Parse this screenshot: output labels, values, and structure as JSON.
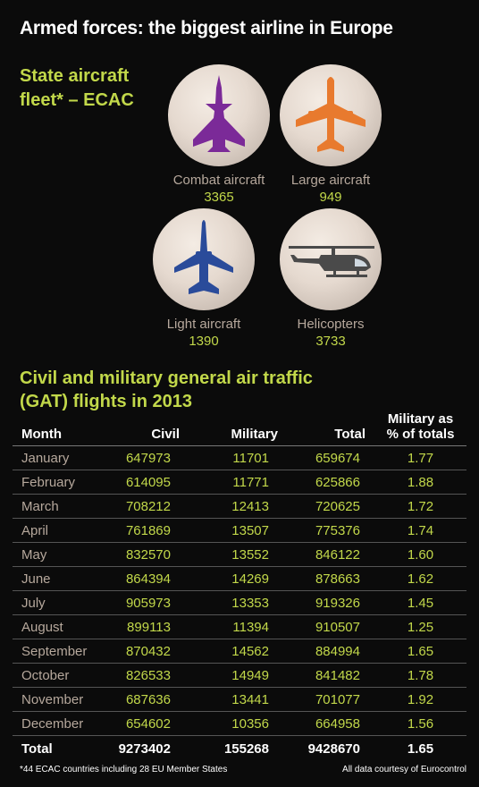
{
  "title": "Armed forces: the biggest airline in Europe",
  "fleet": {
    "heading": "State aircraft\nfleet* – ECAC",
    "items": [
      {
        "label": "Combat aircraft",
        "value": "3365",
        "icon": "fighter-jet-icon",
        "color": "#7b2a98"
      },
      {
        "label": "Large aircraft",
        "value": "949",
        "icon": "airliner-icon",
        "color": "#e87a2e"
      },
      {
        "label": "Light aircraft",
        "value": "1390",
        "icon": "light-jet-icon",
        "color": "#2a4b9a"
      },
      {
        "label": "Helicopters",
        "value": "3733",
        "icon": "helicopter-icon",
        "color": "#4a4a4a"
      }
    ]
  },
  "traffic": {
    "heading": "Civil and military general air traffic\n(GAT) flights in 2013",
    "columns": [
      "Month",
      "Civil",
      "Military",
      "Total",
      "Military as\n% of totals"
    ],
    "rows": [
      [
        "January",
        "647973",
        "11701",
        "659674",
        "1.77"
      ],
      [
        "February",
        "614095",
        "11771",
        "625866",
        "1.88"
      ],
      [
        "March",
        "708212",
        "12413",
        "720625",
        "1.72"
      ],
      [
        "April",
        "761869",
        "13507",
        "775376",
        "1.74"
      ],
      [
        "May",
        "832570",
        "13552",
        "846122",
        "1.60"
      ],
      [
        "June",
        "864394",
        "14269",
        "878663",
        "1.62"
      ],
      [
        "July",
        "905973",
        "13353",
        "919326",
        "1.45"
      ],
      [
        "August",
        "899113",
        "11394",
        "910507",
        "1.25"
      ],
      [
        "September",
        "870432",
        "14562",
        "884994",
        "1.65"
      ],
      [
        "October",
        "826533",
        "14949",
        "841482",
        "1.78"
      ],
      [
        "November",
        "687636",
        "13441",
        "701077",
        "1.92"
      ],
      [
        "December",
        "654602",
        "10356",
        "664958",
        "1.56"
      ]
    ],
    "total": [
      "Total",
      "9273402",
      "155268",
      "9428670",
      "1.65"
    ]
  },
  "footnote": "*44 ECAC countries including 28 EU Member States",
  "credit": "All data courtesy of Eurocontrol",
  "colors": {
    "accent": "#c2d84a",
    "label": "#b6a89c",
    "background": "#0b0b0b"
  }
}
